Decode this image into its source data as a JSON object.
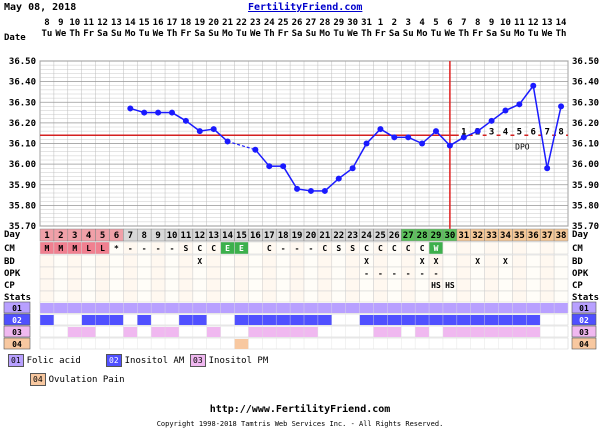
{
  "header": {
    "date": "May 08, 2018",
    "site": "FertilityFriend.com"
  },
  "row_labels": {
    "date": "Date",
    "cm": "CM",
    "bd": "BD",
    "opk": "OPK",
    "cp": "CP",
    "stats": "Stats",
    "day": "Day"
  },
  "colors": {
    "temp_line": "#1a1aff",
    "coverline": "#d42020",
    "ovulation_line": "#e02020",
    "grid": "#bcbcbc",
    "phase_menses": "#f0a0a8",
    "phase_fertile": "#5cc25c",
    "phase_luteal": "#f5c898",
    "phase_default": "#d8d8d8",
    "cm_menses": "#f08090",
    "cm_fertile": "#3cb04c",
    "supp_01": "#b8a0ff",
    "supp_02": "#5050ff",
    "supp_03": "#f0b8f0",
    "supp_04": "#f8c8a0"
  },
  "chart_data": {
    "type": "line",
    "title": "",
    "y_ticks": [
      "36.50",
      "36.40",
      "36.30",
      "36.20",
      "36.10",
      "36.00",
      "35.90",
      "35.80",
      "35.70"
    ],
    "ylim": [
      35.7,
      36.5
    ],
    "coverline": 36.14,
    "ovulation_day": 30,
    "dates": [
      "8",
      "9",
      "10",
      "11",
      "12",
      "13",
      "14",
      "15",
      "16",
      "17",
      "18",
      "19",
      "20",
      "21",
      "22",
      "23",
      "24",
      "25",
      "26",
      "27",
      "28",
      "29",
      "30",
      "31",
      "1",
      "2",
      "3",
      "4",
      "5",
      "6",
      "7",
      "8",
      "9",
      "10",
      "11",
      "12",
      "13",
      "14"
    ],
    "weekdays": [
      "Tu",
      "We",
      "Th",
      "Fr",
      "Sa",
      "Su",
      "Mo",
      "Tu",
      "We",
      "Th",
      "Fr",
      "Sa",
      "Su",
      "Mo",
      "Tu",
      "We",
      "Th",
      "Fr",
      "Sa",
      "Su",
      "Mo",
      "Tu",
      "We",
      "Th",
      "Fr",
      "Sa",
      "Su",
      "Mo",
      "Tu",
      "We",
      "Th",
      "Fr",
      "Sa",
      "Su",
      "Mo",
      "Tu",
      "We",
      "Th"
    ],
    "day_numbers": [
      "1",
      "2",
      "3",
      "4",
      "5",
      "6",
      "7",
      "8",
      "9",
      "10",
      "11",
      "12",
      "13",
      "14",
      "15",
      "16",
      "17",
      "18",
      "19",
      "20",
      "21",
      "22",
      "23",
      "24",
      "25",
      "26",
      "27",
      "28",
      "29",
      "30",
      "31",
      "32",
      "33",
      "34",
      "35",
      "36",
      "37",
      "38"
    ],
    "temps": [
      null,
      null,
      null,
      null,
      null,
      null,
      36.27,
      36.25,
      36.25,
      36.25,
      36.21,
      36.16,
      36.17,
      36.11,
      null,
      36.07,
      35.99,
      35.99,
      35.88,
      35.87,
      35.87,
      35.93,
      35.98,
      36.1,
      36.17,
      36.13,
      36.13,
      36.1,
      36.16,
      36.09,
      36.13,
      36.16,
      36.21,
      36.26,
      36.29,
      36.38,
      35.98,
      36.28
    ],
    "dashed_segment": [
      14,
      16
    ],
    "dpo_labels": [
      "1",
      "2",
      "3",
      "4",
      "5",
      "6",
      "7",
      "8"
    ],
    "dpo_text": "DPO",
    "cm": [
      "M",
      "M",
      "M",
      "L",
      "L",
      "*",
      "-",
      "-",
      "-",
      "-",
      "S",
      "C",
      "C",
      "E",
      "E",
      "",
      "C",
      "-",
      "-",
      "-",
      "C",
      "S",
      "S",
      "C",
      "C",
      "C",
      "C",
      "C",
      "W",
      "",
      "",
      "",
      "",
      "",
      "",
      "",
      "",
      ""
    ],
    "bd": [
      "",
      "",
      "",
      "",
      "",
      "",
      "",
      "",
      "",
      "",
      "",
      "X",
      "",
      "",
      "",
      "",
      "",
      "",
      "",
      "",
      "",
      "",
      "",
      "X",
      "",
      "",
      "",
      "X",
      "X",
      "",
      "",
      "X",
      "",
      "X",
      "",
      "",
      "",
      ""
    ],
    "opk": [
      "",
      "",
      "",
      "",
      "",
      "",
      "",
      "",
      "",
      "",
      "",
      "",
      "",
      "",
      "",
      "",
      "",
      "",
      "",
      "",
      "",
      "",
      "",
      "-",
      "-",
      "-",
      "-",
      "-",
      "-",
      "",
      "",
      "",
      "",
      "",
      "",
      "",
      "",
      ""
    ],
    "cp": [
      "",
      "",
      "",
      "",
      "",
      "",
      "",
      "",
      "",
      "",
      "",
      "",
      "",
      "",
      "",
      "",
      "",
      "",
      "",
      "",
      "",
      "",
      "",
      "",
      "",
      "",
      "",
      "",
      "HS",
      "HS",
      "",
      "",
      "",
      "",
      "",
      "",
      "",
      ""
    ],
    "supplements": [
      {
        "code": "01",
        "name": "Folic acid",
        "days": [
          1,
          38
        ]
      },
      {
        "code": "02",
        "name": "Inositol AM",
        "ranges": [
          [
            1,
            1
          ],
          [
            4,
            6
          ],
          [
            8,
            8
          ],
          [
            11,
            12
          ],
          [
            15,
            21
          ],
          [
            24,
            36
          ]
        ]
      },
      {
        "code": "03",
        "name": "Inositol PM",
        "ranges": [
          [
            3,
            4
          ],
          [
            7,
            7
          ],
          [
            9,
            10
          ],
          [
            13,
            13
          ],
          [
            16,
            20
          ],
          [
            25,
            26
          ],
          [
            28,
            28
          ],
          [
            30,
            36
          ]
        ]
      },
      {
        "code": "04",
        "name": "Ovulation Pain",
        "ranges": [
          [
            15,
            15
          ]
        ]
      }
    ]
  },
  "legend": {
    "items": [
      {
        "code": "01",
        "label": "Folic acid"
      },
      {
        "code": "02",
        "label": "Inositol AM"
      },
      {
        "code": "03",
        "label": "Inositol PM"
      },
      {
        "code": "04",
        "label": "Ovulation Pain"
      }
    ]
  },
  "footer": {
    "url": "http://www.FertilityFriend.com",
    "copyright": "Copyright 1998-2018 Tamtris Web Services Inc. - All Rights Reserved."
  }
}
